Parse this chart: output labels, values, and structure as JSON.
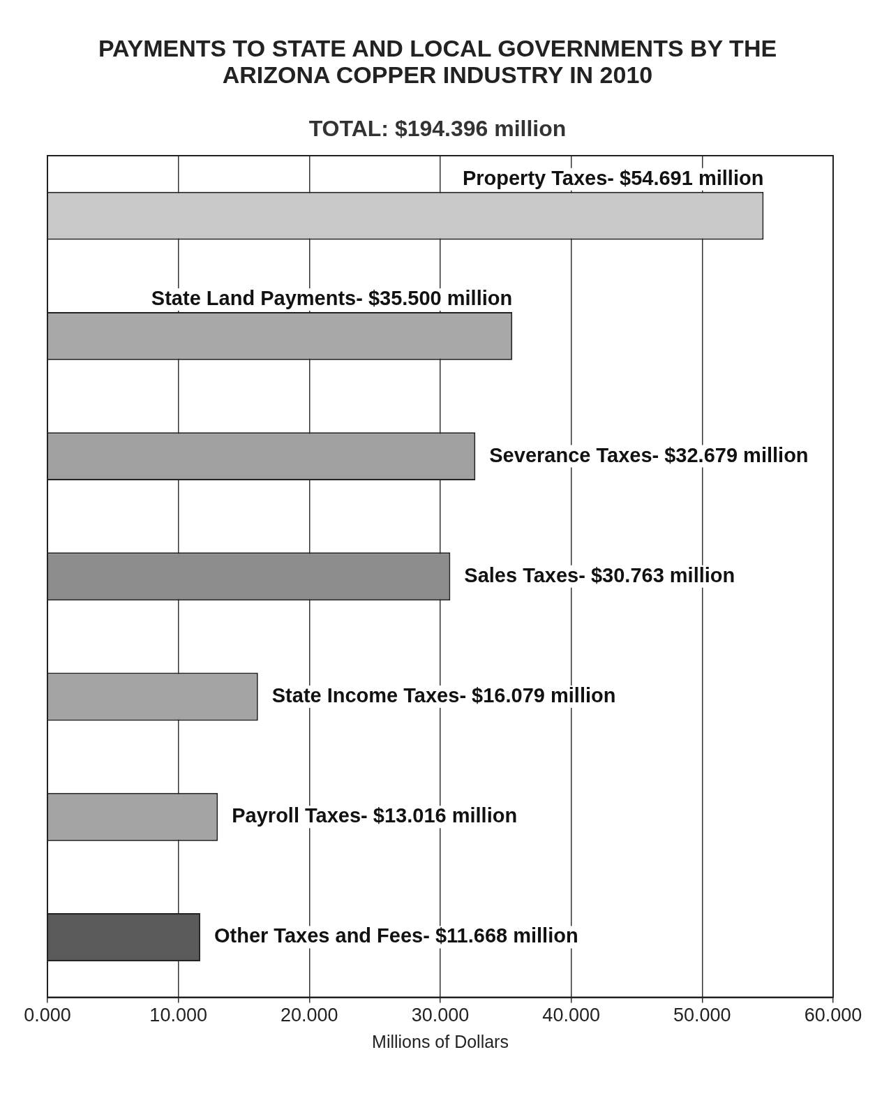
{
  "chart_data": {
    "type": "bar",
    "orientation": "horizontal",
    "title": "PAYMENTS TO STATE AND LOCAL GOVERNMENTS BY THE ARIZONA COPPER INDUSTRY IN 2010",
    "subtitle": "TOTAL: $194.396 million",
    "xlabel": "Millions of Dollars",
    "categories": [
      null,
      null,
      null,
      null,
      null,
      null,
      null
    ],
    "values": [
      54.691,
      35.5,
      32.679,
      30.763,
      16.079,
      13.016,
      11.668
    ],
    "colors": [
      "#c8c8c8",
      "#a8a8a8",
      "#a0a0a0",
      "#8c8c8c",
      "#a4a4a4",
      "#a4a4a4",
      "#5a5a5a"
    ],
    "value_labels": [
      "Property Taxes- $54.691 million",
      "State Land Payments- $35.500 million",
      "Severance Taxes- $32.679 million",
      "Sales Taxes- $30.763 million",
      "State Income Taxes- $16.079 million",
      "Payroll Taxes- $13.016 million",
      "Other Taxes and Fees- $11.668 million"
    ],
    "xlim": [
      0,
      60
    ],
    "xticks": [
      {
        "value": 0,
        "label": "0.000"
      },
      {
        "value": 10,
        "label": "10.000"
      },
      {
        "value": 20,
        "label": "20.000"
      },
      {
        "value": 30,
        "label": "30.000"
      },
      {
        "value": 40,
        "label": "40.000"
      },
      {
        "value": 50,
        "label": "50.000"
      },
      {
        "value": 60,
        "label": "60.000"
      }
    ],
    "grid": "x",
    "legend": false,
    "tick_labels": "x"
  }
}
